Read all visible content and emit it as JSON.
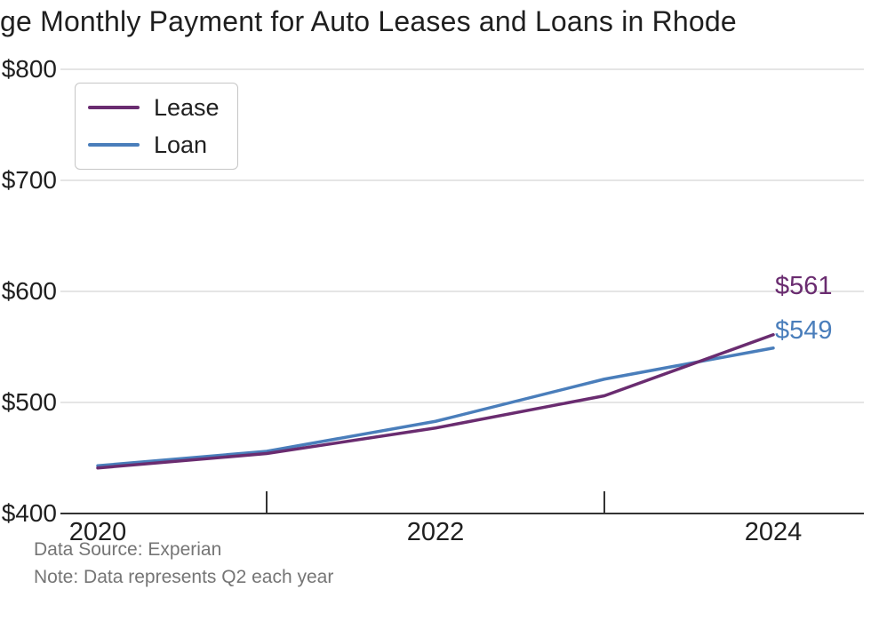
{
  "chart_data": {
    "type": "line",
    "title": "ge Monthly Payment for Auto Leases and Loans in Rhode",
    "x": [
      2020,
      2021,
      2022,
      2023,
      2024
    ],
    "xlim": [
      2020,
      2024
    ],
    "ylim": [
      400,
      800
    ],
    "series": [
      {
        "name": "Lease",
        "color": "#6A2C70",
        "values": [
          441,
          454,
          477,
          506,
          561
        ],
        "end_label": "$561"
      },
      {
        "name": "Loan",
        "color": "#4A7EBB",
        "values": [
          443,
          456,
          483,
          521,
          549
        ],
        "end_label": "$549"
      }
    ],
    "ytick_values": [
      400,
      500,
      600,
      700,
      800
    ],
    "ytick_labels": [
      "$400",
      "$500",
      "$600",
      "$700",
      "$800"
    ],
    "xtick_labels": [
      {
        "label": "2020",
        "year": 2020
      },
      {
        "label": "2022",
        "year": 2022
      },
      {
        "label": "2024",
        "year": 2024
      }
    ],
    "minor_xticks": [
      2021,
      2023
    ],
    "grid": true,
    "legend_position": "top-left",
    "notes": [
      "Data Source: Experian",
      "Note: Data represents Q2 each year"
    ]
  }
}
